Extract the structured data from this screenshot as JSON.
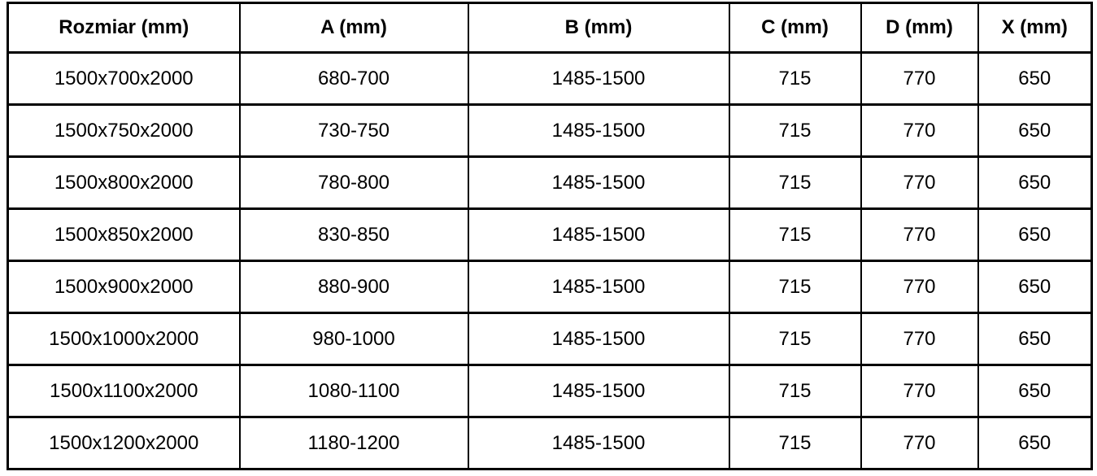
{
  "table": {
    "columns": [
      "Rozmiar (mm)",
      "A (mm)",
      "B (mm)",
      "C (mm)",
      "D (mm)",
      "X (mm)"
    ],
    "column_keys": [
      "rozmiar",
      "a",
      "b",
      "c",
      "d",
      "x"
    ],
    "rows": [
      [
        "1500x700x2000",
        "680-700",
        "1485-1500",
        "715",
        "770",
        "650"
      ],
      [
        "1500x750x2000",
        "730-750",
        "1485-1500",
        "715",
        "770",
        "650"
      ],
      [
        "1500x800x2000",
        "780-800",
        "1485-1500",
        "715",
        "770",
        "650"
      ],
      [
        "1500x850x2000",
        "830-850",
        "1485-1500",
        "715",
        "770",
        "650"
      ],
      [
        "1500x900x2000",
        "880-900",
        "1485-1500",
        "715",
        "770",
        "650"
      ],
      [
        "1500x1000x2000",
        "980-1000",
        "1485-1500",
        "715",
        "770",
        "650"
      ],
      [
        "1500x1100x2000",
        "1080-1100",
        "1485-1500",
        "715",
        "770",
        "650"
      ],
      [
        "1500x1200x2000",
        "1180-1200",
        "1485-1500",
        "715",
        "770",
        "650"
      ]
    ],
    "colors": {
      "border": "#000000",
      "text": "#000000",
      "background": "#ffffff"
    }
  }
}
